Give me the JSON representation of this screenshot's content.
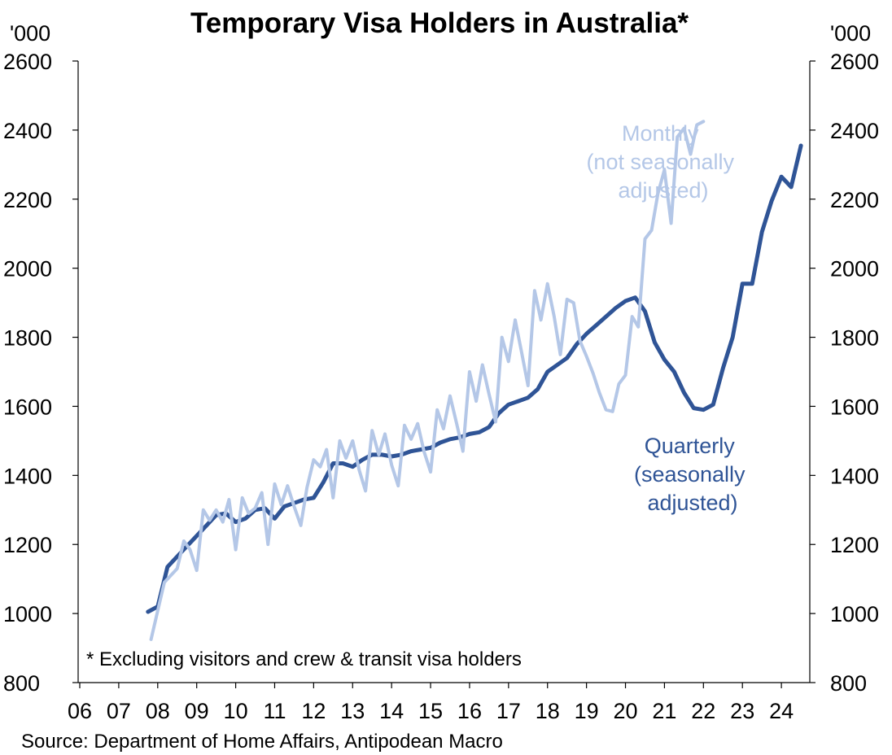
{
  "chart_data": {
    "type": "line",
    "title": "Temporary Visa Holders in Australia*",
    "y_unit_left": "'000",
    "y_unit_right": "'000",
    "ylim": [
      800,
      2600
    ],
    "y_ticks": [
      800,
      1000,
      1200,
      1400,
      1600,
      1800,
      2000,
      2200,
      2400,
      2600
    ],
    "y_tick_labels": [
      "800",
      "1000",
      "1200",
      "1400",
      "1600",
      "1800",
      "2000",
      "2200",
      "2400",
      "2600"
    ],
    "xlim": [
      2006,
      2025
    ],
    "x_tick_labels": [
      "06",
      "07",
      "08",
      "09",
      "10",
      "11",
      "12",
      "13",
      "14",
      "15",
      "16",
      "17",
      "18",
      "19",
      "20",
      "21",
      "22",
      "23",
      "24"
    ],
    "grid": false,
    "footnote": "* Excluding visitors and crew & transit visa holders",
    "source": "Source: Department of Home Affairs, Antipodean Macro",
    "colors": {
      "quarterly": "#2f5496",
      "monthly": "#b4c7e7"
    },
    "series": [
      {
        "name": "Quarterly (seasonally adjusted)",
        "label_lines": [
          "Quarterly",
          "(seasonally",
          "adjusted)"
        ],
        "color": "#2f5496",
        "points": [
          [
            2007.75,
            1005
          ],
          [
            2008.0,
            1020
          ],
          [
            2008.25,
            1135
          ],
          [
            2008.5,
            1165
          ],
          [
            2008.75,
            1195
          ],
          [
            2009.0,
            1225
          ],
          [
            2009.25,
            1255
          ],
          [
            2009.5,
            1285
          ],
          [
            2009.75,
            1290
          ],
          [
            2010.0,
            1265
          ],
          [
            2010.25,
            1275
          ],
          [
            2010.5,
            1300
          ],
          [
            2010.75,
            1305
          ],
          [
            2011.0,
            1275
          ],
          [
            2011.25,
            1310
          ],
          [
            2011.5,
            1320
          ],
          [
            2011.75,
            1330
          ],
          [
            2012.0,
            1335
          ],
          [
            2012.25,
            1380
          ],
          [
            2012.5,
            1435
          ],
          [
            2012.75,
            1435
          ],
          [
            2013.0,
            1425
          ],
          [
            2013.25,
            1445
          ],
          [
            2013.5,
            1460
          ],
          [
            2013.75,
            1460
          ],
          [
            2014.0,
            1455
          ],
          [
            2014.25,
            1460
          ],
          [
            2014.5,
            1470
          ],
          [
            2014.75,
            1475
          ],
          [
            2015.0,
            1480
          ],
          [
            2015.25,
            1495
          ],
          [
            2015.5,
            1505
          ],
          [
            2015.75,
            1510
          ],
          [
            2016.0,
            1520
          ],
          [
            2016.25,
            1525
          ],
          [
            2016.5,
            1540
          ],
          [
            2016.75,
            1580
          ],
          [
            2017.0,
            1605
          ],
          [
            2017.25,
            1615
          ],
          [
            2017.5,
            1625
          ],
          [
            2017.75,
            1650
          ],
          [
            2018.0,
            1700
          ],
          [
            2018.25,
            1720
          ],
          [
            2018.5,
            1740
          ],
          [
            2018.75,
            1780
          ],
          [
            2019.0,
            1810
          ],
          [
            2019.25,
            1835
          ],
          [
            2019.5,
            1860
          ],
          [
            2019.75,
            1885
          ],
          [
            2020.0,
            1905
          ],
          [
            2020.25,
            1915
          ],
          [
            2020.5,
            1875
          ],
          [
            2020.75,
            1785
          ],
          [
            2021.0,
            1735
          ],
          [
            2021.25,
            1700
          ],
          [
            2021.5,
            1640
          ],
          [
            2021.75,
            1595
          ],
          [
            2022.0,
            1590
          ],
          [
            2022.25,
            1605
          ],
          [
            2022.5,
            1710
          ],
          [
            2022.75,
            1800
          ],
          [
            2023.0,
            1955
          ],
          [
            2023.25,
            1955
          ],
          [
            2023.5,
            2105
          ],
          [
            2023.75,
            2195
          ],
          [
            2024.0,
            2265
          ],
          [
            2024.25,
            2235
          ],
          [
            2024.5,
            2355
          ]
        ]
      },
      {
        "name": "Monthly (not seasonally adjusted)",
        "label_lines": [
          "Monthly",
          "(not seasonally",
          "adjusted)"
        ],
        "color": "#b4c7e7",
        "points": [
          [
            2007.83,
            925
          ],
          [
            2008.17,
            1090
          ],
          [
            2008.5,
            1130
          ],
          [
            2008.67,
            1210
          ],
          [
            2008.83,
            1185
          ],
          [
            2009.0,
            1125
          ],
          [
            2009.17,
            1300
          ],
          [
            2009.33,
            1270
          ],
          [
            2009.5,
            1300
          ],
          [
            2009.67,
            1265
          ],
          [
            2009.83,
            1330
          ],
          [
            2010.0,
            1185
          ],
          [
            2010.17,
            1335
          ],
          [
            2010.33,
            1290
          ],
          [
            2010.5,
            1305
          ],
          [
            2010.67,
            1350
          ],
          [
            2010.83,
            1200
          ],
          [
            2011.0,
            1375
          ],
          [
            2011.17,
            1315
          ],
          [
            2011.33,
            1370
          ],
          [
            2011.5,
            1310
          ],
          [
            2011.67,
            1255
          ],
          [
            2011.83,
            1365
          ],
          [
            2012.0,
            1445
          ],
          [
            2012.17,
            1425
          ],
          [
            2012.33,
            1475
          ],
          [
            2012.5,
            1335
          ],
          [
            2012.67,
            1500
          ],
          [
            2012.83,
            1450
          ],
          [
            2013.0,
            1500
          ],
          [
            2013.17,
            1415
          ],
          [
            2013.33,
            1355
          ],
          [
            2013.5,
            1530
          ],
          [
            2013.67,
            1460
          ],
          [
            2013.83,
            1520
          ],
          [
            2014.0,
            1430
          ],
          [
            2014.17,
            1370
          ],
          [
            2014.33,
            1545
          ],
          [
            2014.5,
            1505
          ],
          [
            2014.67,
            1550
          ],
          [
            2014.83,
            1470
          ],
          [
            2015.0,
            1410
          ],
          [
            2015.17,
            1590
          ],
          [
            2015.33,
            1535
          ],
          [
            2015.5,
            1630
          ],
          [
            2015.67,
            1550
          ],
          [
            2015.83,
            1470
          ],
          [
            2016.0,
            1700
          ],
          [
            2016.17,
            1615
          ],
          [
            2016.33,
            1720
          ],
          [
            2016.5,
            1635
          ],
          [
            2016.67,
            1555
          ],
          [
            2016.83,
            1800
          ],
          [
            2017.0,
            1730
          ],
          [
            2017.17,
            1850
          ],
          [
            2017.33,
            1760
          ],
          [
            2017.5,
            1660
          ],
          [
            2017.67,
            1935
          ],
          [
            2017.83,
            1850
          ],
          [
            2018.0,
            1955
          ],
          [
            2018.17,
            1860
          ],
          [
            2018.33,
            1750
          ],
          [
            2018.5,
            1910
          ],
          [
            2018.67,
            1900
          ],
          [
            2018.83,
            1790
          ],
          [
            2019.0,
            1745
          ],
          [
            2019.17,
            1695
          ],
          [
            2019.33,
            1640
          ],
          [
            2019.5,
            1590
          ],
          [
            2019.67,
            1585
          ],
          [
            2019.83,
            1665
          ],
          [
            2020.0,
            1690
          ],
          [
            2020.17,
            1860
          ],
          [
            2020.33,
            1830
          ],
          [
            2020.5,
            2085
          ],
          [
            2020.67,
            2110
          ],
          [
            2020.83,
            2215
          ],
          [
            2021.0,
            2285
          ],
          [
            2021.17,
            2130
          ],
          [
            2021.33,
            2380
          ],
          [
            2021.5,
            2405
          ],
          [
            2021.67,
            2330
          ],
          [
            2021.83,
            2415
          ],
          [
            2022.0,
            2425
          ]
        ]
      }
    ]
  }
}
